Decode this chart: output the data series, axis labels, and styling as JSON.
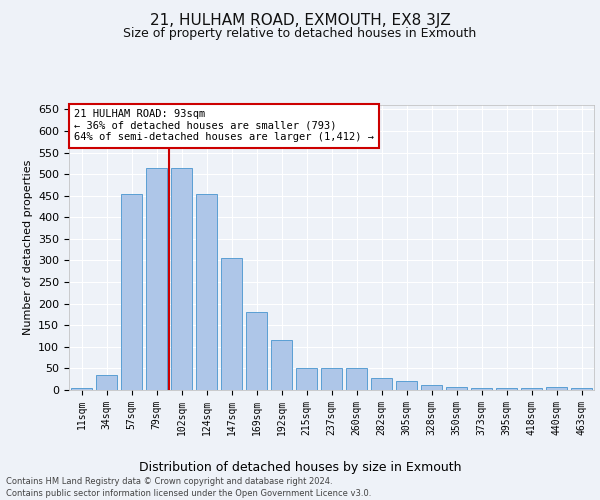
{
  "title1": "21, HULHAM ROAD, EXMOUTH, EX8 3JZ",
  "title2": "Size of property relative to detached houses in Exmouth",
  "xlabel": "Distribution of detached houses by size in Exmouth",
  "ylabel": "Number of detached properties",
  "categories": [
    "11sqm",
    "34sqm",
    "57sqm",
    "79sqm",
    "102sqm",
    "124sqm",
    "147sqm",
    "169sqm",
    "192sqm",
    "215sqm",
    "237sqm",
    "260sqm",
    "282sqm",
    "305sqm",
    "328sqm",
    "350sqm",
    "373sqm",
    "395sqm",
    "418sqm",
    "440sqm",
    "463sqm"
  ],
  "values": [
    5,
    35,
    455,
    515,
    515,
    455,
    305,
    180,
    115,
    50,
    50,
    50,
    28,
    20,
    12,
    8,
    5,
    5,
    5,
    7,
    5
  ],
  "bar_color": "#aec6e8",
  "bar_edge_color": "#5a9fd4",
  "property_line_color": "#cc0000",
  "annotation_text": "21 HULHAM ROAD: 93sqm\n← 36% of detached houses are smaller (793)\n64% of semi-detached houses are larger (1,412) →",
  "annotation_box_color": "white",
  "annotation_box_edge_color": "#cc0000",
  "ylim": [
    0,
    660
  ],
  "yticks": [
    0,
    50,
    100,
    150,
    200,
    250,
    300,
    350,
    400,
    450,
    500,
    550,
    600,
    650
  ],
  "footer1": "Contains HM Land Registry data © Crown copyright and database right 2024.",
  "footer2": "Contains public sector information licensed under the Open Government Licence v3.0.",
  "bg_color": "#eef2f8",
  "plot_bg_color": "#eef2f8",
  "grid_color": "#ffffff"
}
